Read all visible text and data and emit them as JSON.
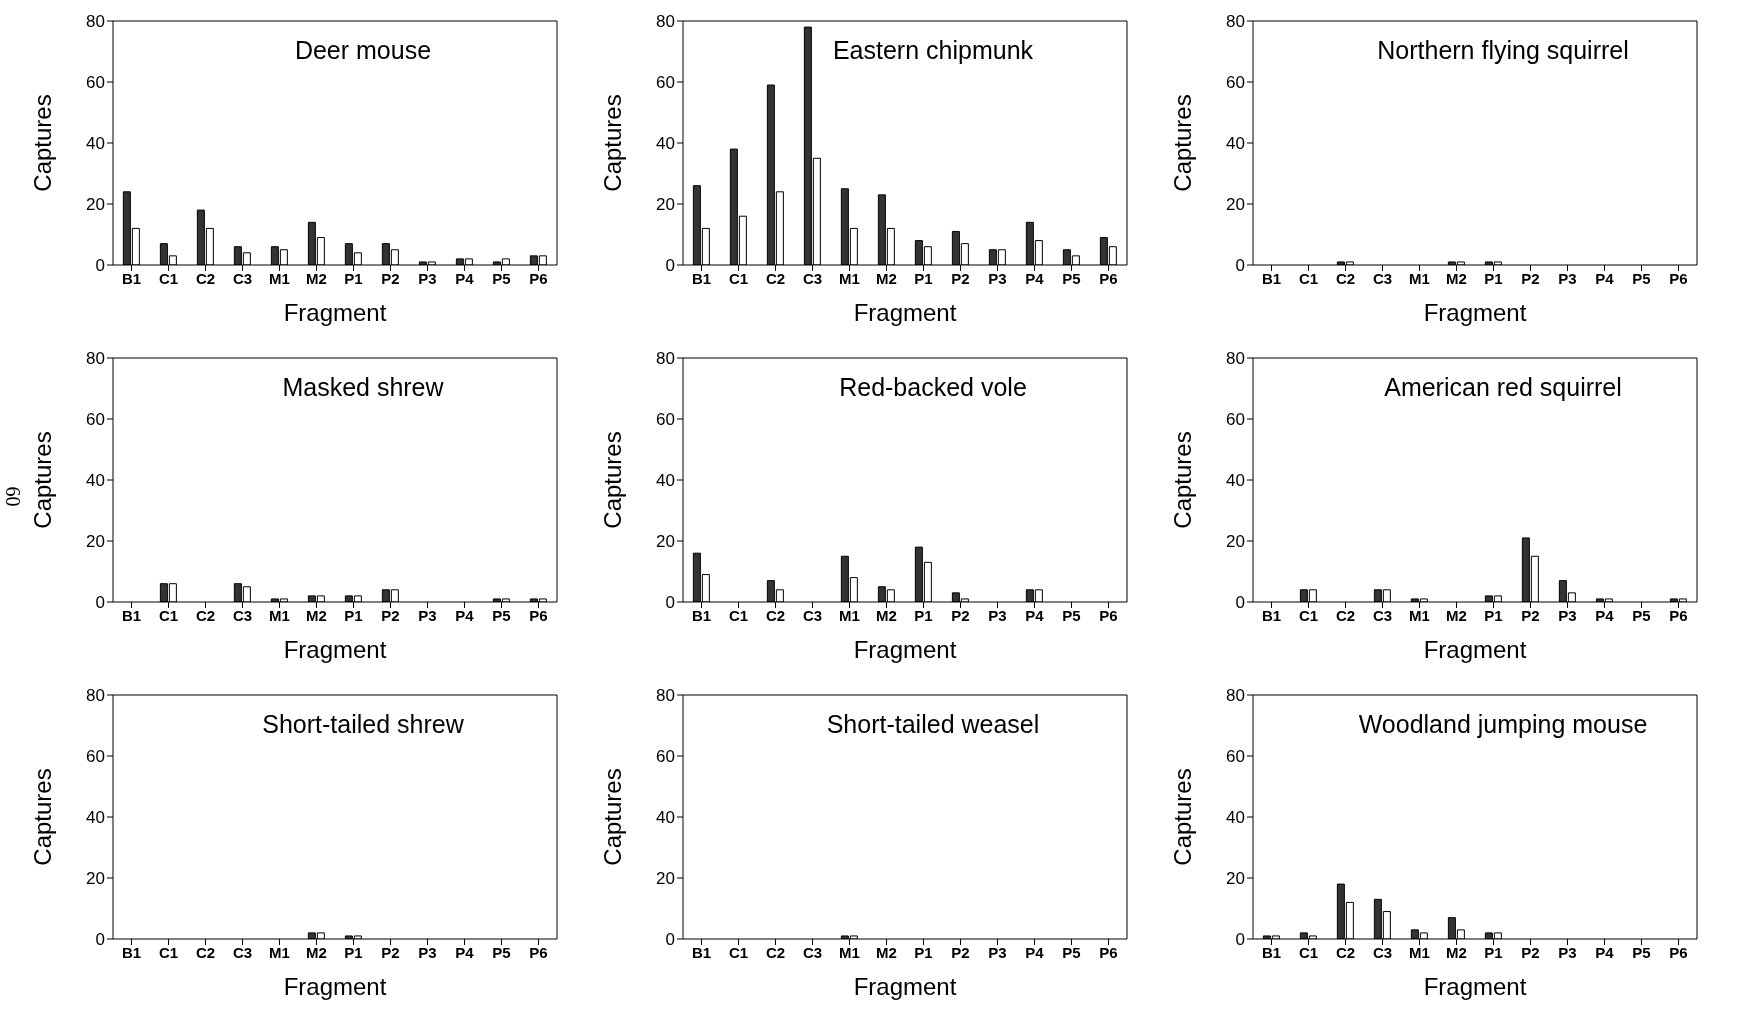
{
  "chart_data": [
    {
      "type": "bar",
      "title": "Deer mouse",
      "xlabel": "Fragment",
      "ylabel": "Captures",
      "categories": [
        "B1",
        "C1",
        "C2",
        "C3",
        "M1",
        "M2",
        "P1",
        "P2",
        "P3",
        "P4",
        "P5",
        "P6"
      ],
      "series": [
        {
          "color": "#333333",
          "values": [
            24,
            7,
            18,
            6,
            6,
            14,
            7,
            7,
            1,
            2,
            1,
            3
          ]
        },
        {
          "color": "#ffffff",
          "values": [
            12,
            3,
            12,
            4,
            5,
            9,
            4,
            5,
            1,
            2,
            2,
            3
          ]
        }
      ],
      "ylim": [
        0,
        80
      ],
      "yticks": [
        0,
        20,
        40,
        60,
        80
      ],
      "grid": false,
      "legend": false
    },
    {
      "type": "bar",
      "title": "Eastern chipmunk",
      "xlabel": "Fragment",
      "ylabel": "Captures",
      "categories": [
        "B1",
        "C1",
        "C2",
        "C3",
        "M1",
        "M2",
        "P1",
        "P2",
        "P3",
        "P4",
        "P5",
        "P6"
      ],
      "series": [
        {
          "color": "#333333",
          "values": [
            26,
            38,
            59,
            78,
            25,
            23,
            8,
            11,
            5,
            14,
            5,
            9
          ]
        },
        {
          "color": "#ffffff",
          "values": [
            12,
            16,
            24,
            35,
            12,
            12,
            6,
            7,
            5,
            8,
            3,
            6
          ]
        }
      ],
      "ylim": [
        0,
        80
      ],
      "yticks": [
        0,
        20,
        40,
        60,
        80
      ],
      "grid": false,
      "legend": false
    },
    {
      "type": "bar",
      "title": "Northern flying squirrel",
      "xlabel": "Fragment",
      "ylabel": "Captures",
      "categories": [
        "B1",
        "C1",
        "C2",
        "C3",
        "M1",
        "M2",
        "P1",
        "P2",
        "P3",
        "P4",
        "P5",
        "P6"
      ],
      "series": [
        {
          "color": "#333333",
          "values": [
            0,
            0,
            1,
            0,
            0,
            1,
            1,
            0,
            0,
            0,
            0,
            0
          ]
        },
        {
          "color": "#ffffff",
          "values": [
            0,
            0,
            1,
            0,
            0,
            1,
            1,
            0,
            0,
            0,
            0,
            0
          ]
        }
      ],
      "ylim": [
        0,
        80
      ],
      "yticks": [
        0,
        20,
        40,
        60,
        80
      ],
      "grid": false,
      "legend": false
    },
    {
      "type": "bar",
      "title": "Masked shrew",
      "xlabel": "Fragment",
      "ylabel": "Captures",
      "annotations": [
        "60"
      ],
      "categories": [
        "B1",
        "C1",
        "C2",
        "C3",
        "M1",
        "M2",
        "P1",
        "P2",
        "P3",
        "P4",
        "P5",
        "P6"
      ],
      "series": [
        {
          "color": "#333333",
          "values": [
            0,
            6,
            0,
            6,
            1,
            2,
            2,
            4,
            0,
            0,
            1,
            1
          ]
        },
        {
          "color": "#ffffff",
          "values": [
            0,
            6,
            0,
            5,
            1,
            2,
            2,
            4,
            0,
            0,
            1,
            1
          ]
        }
      ],
      "ylim": [
        0,
        80
      ],
      "yticks": [
        0,
        20,
        40,
        60,
        80
      ],
      "grid": false,
      "legend": false
    },
    {
      "type": "bar",
      "title": "Red-backed vole",
      "xlabel": "Fragment",
      "ylabel": "Captures",
      "categories": [
        "B1",
        "C1",
        "C2",
        "C3",
        "M1",
        "M2",
        "P1",
        "P2",
        "P3",
        "P4",
        "P5",
        "P6"
      ],
      "series": [
        {
          "color": "#333333",
          "values": [
            16,
            0,
            7,
            0,
            15,
            5,
            18,
            3,
            0,
            4,
            0,
            0
          ]
        },
        {
          "color": "#ffffff",
          "values": [
            9,
            0,
            4,
            0,
            8,
            4,
            13,
            1,
            0,
            4,
            0,
            0
          ]
        }
      ],
      "ylim": [
        0,
        80
      ],
      "yticks": [
        0,
        20,
        40,
        60,
        80
      ],
      "grid": false,
      "legend": false
    },
    {
      "type": "bar",
      "title": "American red squirrel",
      "xlabel": "Fragment",
      "ylabel": "Captures",
      "categories": [
        "B1",
        "C1",
        "C2",
        "C3",
        "M1",
        "M2",
        "P1",
        "P2",
        "P3",
        "P4",
        "P5",
        "P6"
      ],
      "series": [
        {
          "color": "#333333",
          "values": [
            0,
            4,
            0,
            4,
            1,
            0,
            2,
            21,
            7,
            1,
            0,
            1
          ]
        },
        {
          "color": "#ffffff",
          "values": [
            0,
            4,
            0,
            4,
            1,
            0,
            2,
            15,
            3,
            1,
            0,
            1
          ]
        }
      ],
      "ylim": [
        0,
        80
      ],
      "yticks": [
        0,
        20,
        40,
        60,
        80
      ],
      "grid": false,
      "legend": false
    },
    {
      "type": "bar",
      "title": "Short-tailed shrew",
      "xlabel": "Fragment",
      "ylabel": "Captures",
      "categories": [
        "B1",
        "C1",
        "C2",
        "C3",
        "M1",
        "M2",
        "P1",
        "P2",
        "P3",
        "P4",
        "P5",
        "P6"
      ],
      "series": [
        {
          "color": "#333333",
          "values": [
            0,
            0,
            0,
            0,
            0,
            2,
            1,
            0,
            0,
            0,
            0,
            0
          ]
        },
        {
          "color": "#ffffff",
          "values": [
            0,
            0,
            0,
            0,
            0,
            2,
            1,
            0,
            0,
            0,
            0,
            0
          ]
        }
      ],
      "ylim": [
        0,
        80
      ],
      "yticks": [
        0,
        20,
        40,
        60,
        80
      ],
      "grid": false,
      "legend": false
    },
    {
      "type": "bar",
      "title": "Short-tailed weasel",
      "xlabel": "Fragment",
      "ylabel": "Captures",
      "categories": [
        "B1",
        "C1",
        "C2",
        "C3",
        "M1",
        "M2",
        "P1",
        "P2",
        "P3",
        "P4",
        "P5",
        "P6"
      ],
      "series": [
        {
          "color": "#333333",
          "values": [
            0,
            0,
            0,
            0,
            1,
            0,
            0,
            0,
            0,
            0,
            0,
            0
          ]
        },
        {
          "color": "#ffffff",
          "values": [
            0,
            0,
            0,
            0,
            1,
            0,
            0,
            0,
            0,
            0,
            0,
            0
          ]
        }
      ],
      "ylim": [
        0,
        80
      ],
      "yticks": [
        0,
        20,
        40,
        60,
        80
      ],
      "grid": false,
      "legend": false
    },
    {
      "type": "bar",
      "title": "Woodland jumping mouse",
      "xlabel": "Fragment",
      "ylabel": "Captures",
      "categories": [
        "B1",
        "C1",
        "C2",
        "C3",
        "M1",
        "M2",
        "P1",
        "P2",
        "P3",
        "P4",
        "P5",
        "P6"
      ],
      "series": [
        {
          "color": "#333333",
          "values": [
            1,
            2,
            18,
            13,
            3,
            7,
            2,
            0,
            0,
            0,
            0,
            0
          ]
        },
        {
          "color": "#ffffff",
          "values": [
            1,
            1,
            12,
            9,
            2,
            3,
            2,
            0,
            0,
            0,
            0,
            0
          ]
        }
      ],
      "ylim": [
        0,
        80
      ],
      "yticks": [
        0,
        20,
        40,
        60,
        80
      ],
      "grid": false,
      "legend": false
    }
  ]
}
